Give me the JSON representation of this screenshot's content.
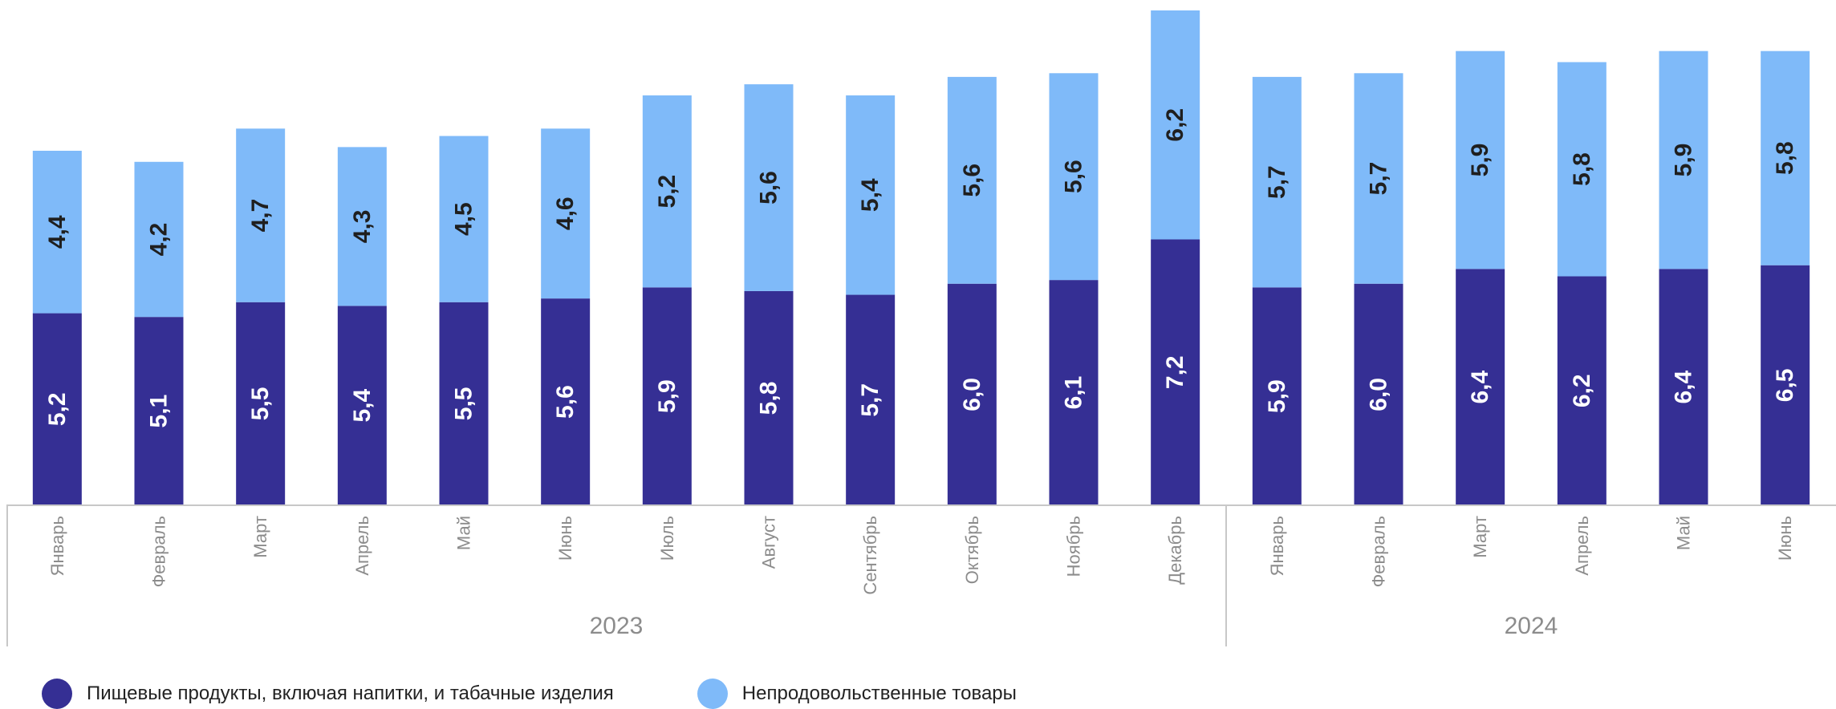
{
  "chart_data": {
    "type": "bar",
    "stacked": true,
    "categories": [
      "Январь",
      "Февраль",
      "Март",
      "Апрель",
      "Май",
      "Июнь",
      "Июль",
      "Август",
      "Сентябрь",
      "Октябрь",
      "Ноябрь",
      "Декабрь",
      "Январь",
      "Февраль",
      "Март",
      "Апрель",
      "Май",
      "Июнь"
    ],
    "groups": [
      {
        "label": "2023",
        "count": 12
      },
      {
        "label": "2024",
        "count": 6
      }
    ],
    "series": [
      {
        "name": "Пищевые продукты, включая напитки, и табачные изделия",
        "color": "#352f94",
        "values": [
          5.2,
          5.1,
          5.5,
          5.4,
          5.5,
          5.6,
          5.9,
          5.8,
          5.7,
          6.0,
          6.1,
          7.2,
          5.9,
          6.0,
          6.4,
          6.2,
          6.4,
          6.5
        ],
        "labels": [
          "5,2",
          "5,1",
          "5,5",
          "5,4",
          "5,5",
          "5,6",
          "5,9",
          "5,8",
          "5,7",
          "6,0",
          "6,1",
          "7,2",
          "5,9",
          "6,0",
          "6,4",
          "6,2",
          "6,4",
          "6,5"
        ]
      },
      {
        "name": "Непродовольственные товары",
        "color": "#7fbaf9",
        "values": [
          4.4,
          4.2,
          4.7,
          4.3,
          4.5,
          4.6,
          5.2,
          5.6,
          5.4,
          5.6,
          5.6,
          6.2,
          5.7,
          5.7,
          5.9,
          5.8,
          5.9,
          5.8
        ],
        "labels": [
          "4,4",
          "4,2",
          "4,7",
          "4,3",
          "4,5",
          "4,6",
          "5,2",
          "5,6",
          "5,4",
          "5,6",
          "5,6",
          "6,2",
          "5,7",
          "5,7",
          "5,9",
          "5,8",
          "5,9",
          "5,8"
        ]
      }
    ],
    "data_label_colors": [
      "#ffffff",
      "#1f1f1f"
    ],
    "axis_color": "#c8c8c8",
    "tick_label_color": "#8c8c8c",
    "legend_position": "bottom-left",
    "grid": false
  }
}
